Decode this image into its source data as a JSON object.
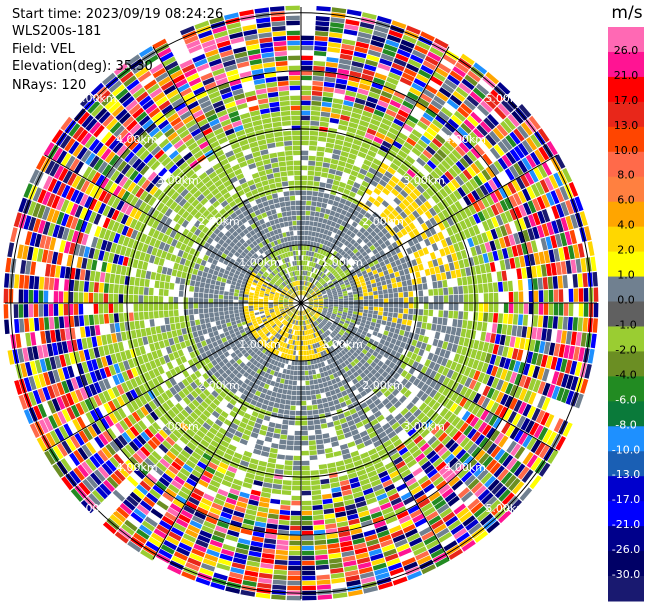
{
  "header": {
    "start_time": "Start time: 2023/09/19 08:24:26",
    "instrument": "WLS200s-181",
    "field": "Field: VEL",
    "elevation": "Elevation(deg): 35.30",
    "nrays": "NRays: 120"
  },
  "chart_data": {
    "type": "ppi",
    "field": "VEL",
    "unit": "m/s",
    "nrays": 120,
    "elevation_deg": 35.3,
    "range_rings_km": [
      1.0,
      2.0,
      3.0,
      4.0,
      5.0
    ],
    "ring_labels": [
      "1.00km",
      "2.00km",
      "3.00km",
      "4.00km",
      "5.00km"
    ],
    "max_range_km": 5.1,
    "colorbar": {
      "ticks": [
        "26.0",
        "21.0",
        "17.0",
        "13.0",
        "10.0",
        "8.0",
        "6.0",
        "4.0",
        "2.0",
        "1.0",
        "0.0",
        "-1.0",
        "-2.0",
        "-4.0",
        "-6.0",
        "-8.0",
        "-10.0",
        "-13.0",
        "-17.0",
        "-21.0",
        "-26.0",
        "-30.0"
      ],
      "colors": [
        "#ff69b4",
        "#ff1493",
        "#ff0000",
        "#e8271a",
        "#ff4500",
        "#ff6a4a",
        "#ff8040",
        "#ffa500",
        "#ffd700",
        "#ffff00",
        "#708090",
        "#606060",
        "#9acd32",
        "#6b8e23",
        "#228b22",
        "#0a7a3a",
        "#1e90ff",
        "#1a5fb4",
        "#0000cd",
        "#0000ff",
        "#00008b",
        "#000066",
        "#191970"
      ]
    },
    "structure": {
      "near_zero_core_km": [
        0.0,
        1.9
      ],
      "clean_gradient_km": [
        1.9,
        2.8
      ],
      "noisy_outer_km": [
        2.8,
        5.1
      ]
    }
  }
}
